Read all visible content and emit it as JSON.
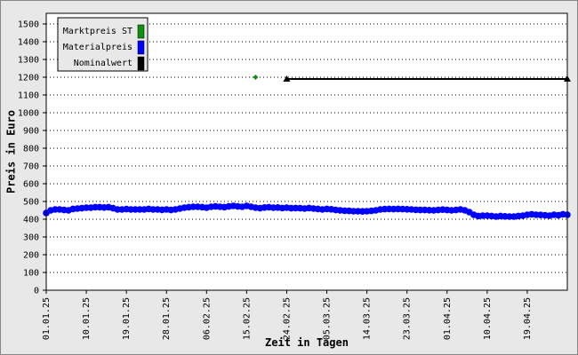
{
  "chart_data": {
    "type": "line",
    "y_label": "Preis in Euro",
    "x_label": "Zeit in Tagen",
    "ylim": [
      0,
      1560
    ],
    "yticks": [
      0,
      100,
      200,
      300,
      400,
      500,
      600,
      700,
      800,
      900,
      1000,
      1100,
      1200,
      1300,
      1400,
      1500
    ],
    "xlim": [
      "01.01.25",
      "28.04.25"
    ],
    "xticks": [
      "01.01.25",
      "10.01.25",
      "19.01.25",
      "28.01.25",
      "06.02.25",
      "15.02.25",
      "24.02.25",
      "05.03.25",
      "14.03.25",
      "23.03.25",
      "01.04.25",
      "10.04.25",
      "19.04.25"
    ],
    "grid": true,
    "legend": "top-left",
    "series": [
      {
        "name": "Marktpreis ST",
        "color": "#109010",
        "marker": "diamond",
        "x": [
          "17.02.25"
        ],
        "values": [
          1200
        ]
      },
      {
        "name": "Materialpreis",
        "color": "#0000ff",
        "marker": "circle",
        "x": [
          "01.01.25",
          "02.01.25",
          "03.01.25",
          "04.01.25",
          "05.01.25",
          "06.01.25",
          "07.01.25",
          "08.01.25",
          "09.01.25",
          "10.01.25",
          "11.01.25",
          "12.01.25",
          "13.01.25",
          "14.01.25",
          "15.01.25",
          "16.01.25",
          "17.01.25",
          "18.01.25",
          "19.01.25",
          "20.01.25",
          "21.01.25",
          "22.01.25",
          "23.01.25",
          "24.01.25",
          "25.01.25",
          "26.01.25",
          "27.01.25",
          "28.01.25",
          "29.01.25",
          "30.01.25",
          "31.01.25",
          "01.02.25",
          "02.02.25",
          "03.02.25",
          "04.02.25",
          "05.02.25",
          "06.02.25",
          "07.02.25",
          "08.02.25",
          "09.02.25",
          "10.02.25",
          "11.02.25",
          "12.02.25",
          "13.02.25",
          "14.02.25",
          "15.02.25",
          "16.02.25",
          "17.02.25",
          "18.02.25",
          "19.02.25",
          "20.02.25",
          "21.02.25",
          "22.02.25",
          "23.02.25",
          "24.02.25",
          "25.02.25",
          "26.02.25",
          "27.02.25",
          "28.02.25",
          "01.03.25",
          "02.03.25",
          "03.03.25",
          "04.03.25",
          "05.03.25",
          "06.03.25",
          "07.03.25",
          "08.03.25",
          "09.03.25",
          "10.03.25",
          "11.03.25",
          "12.03.25",
          "13.03.25",
          "14.03.25",
          "15.03.25",
          "16.03.25",
          "17.03.25",
          "18.03.25",
          "19.03.25",
          "20.03.25",
          "21.03.25",
          "22.03.25",
          "23.03.25",
          "24.03.25",
          "25.03.25",
          "26.03.25",
          "27.03.25",
          "28.03.25",
          "29.03.25",
          "30.03.25",
          "31.03.25",
          "01.04.25",
          "02.04.25",
          "03.04.25",
          "04.04.25",
          "05.04.25",
          "06.04.25",
          "07.04.25",
          "08.04.25",
          "09.04.25",
          "10.04.25",
          "11.04.25",
          "12.04.25",
          "13.04.25",
          "14.04.25",
          "15.04.25",
          "16.04.25",
          "17.04.25",
          "18.04.25",
          "19.04.25",
          "20.04.25",
          "21.04.25",
          "22.04.25",
          "23.04.25",
          "24.04.25",
          "25.04.25",
          "26.04.25",
          "27.04.25",
          "28.04.25"
        ],
        "values": [
          435,
          450,
          455,
          455,
          452,
          450,
          458,
          460,
          462,
          465,
          465,
          468,
          468,
          466,
          468,
          462,
          455,
          455,
          457,
          455,
          455,
          455,
          455,
          458,
          455,
          455,
          453,
          455,
          452,
          455,
          460,
          465,
          468,
          470,
          470,
          468,
          465,
          470,
          472,
          470,
          468,
          472,
          475,
          472,
          470,
          475,
          470,
          465,
          462,
          466,
          468,
          465,
          466,
          463,
          465,
          462,
          463,
          462,
          460,
          463,
          460,
          458,
          455,
          458,
          456,
          452,
          450,
          448,
          447,
          445,
          445,
          444,
          445,
          447,
          450,
          455,
          457,
          458,
          457,
          458,
          457,
          456,
          455,
          453,
          452,
          452,
          451,
          450,
          452,
          454,
          452,
          450,
          452,
          455,
          450,
          440,
          425,
          418,
          420,
          420,
          418,
          415,
          418,
          416,
          415,
          415,
          418,
          420,
          425,
          428,
          425,
          424,
          422,
          420,
          425,
          422,
          428,
          425
        ]
      },
      {
        "name": "Nominalwert",
        "color": "#000000",
        "marker": "triangle",
        "x": [
          "24.02.25",
          "28.04.25"
        ],
        "values": [
          1190,
          1190
        ]
      }
    ]
  }
}
